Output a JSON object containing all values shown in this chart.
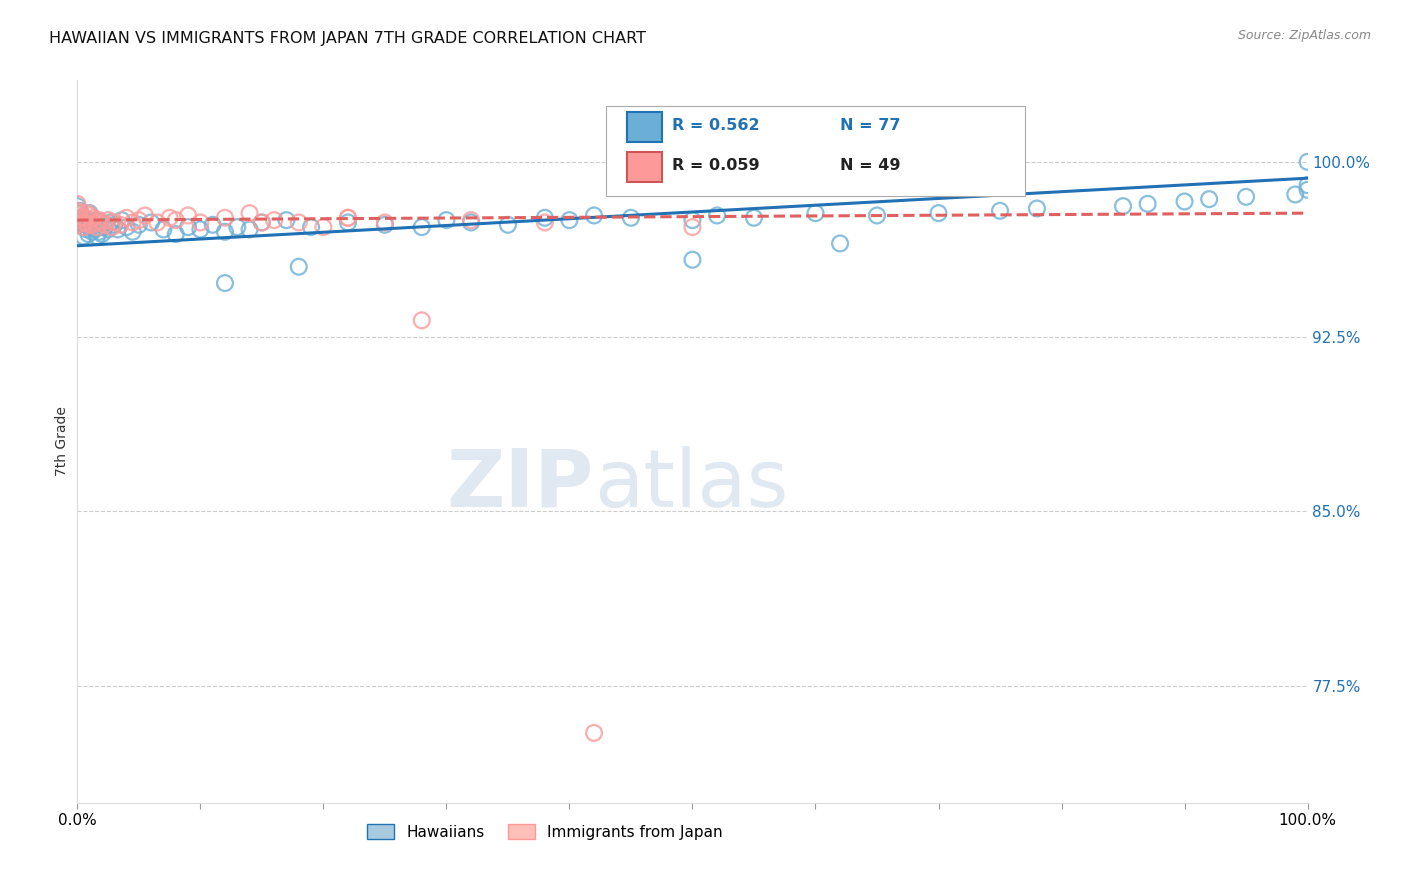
{
  "title": "HAWAIIAN VS IMMIGRANTS FROM JAPAN 7TH GRADE CORRELATION CHART",
  "source": "Source: ZipAtlas.com",
  "ylabel": "7th Grade",
  "xlim": [
    0.0,
    1.0
  ],
  "ylim": [
    0.725,
    1.035
  ],
  "yticks": [
    0.775,
    0.85,
    0.925,
    1.0
  ],
  "ytick_labels": [
    "77.5%",
    "85.0%",
    "92.5%",
    "100.0%"
  ],
  "hawaiians_color": "#6baed6",
  "japan_color": "#fb9a99",
  "trendline_hawaiians_color": "#2171b5",
  "trendline_japan_color": "#e06060",
  "R_hawaiians": 0.562,
  "N_hawaiians": 77,
  "R_japan": 0.059,
  "N_japan": 49,
  "background_color": "#ffffff",
  "h_x": [
    0.0,
    0.0,
    0.0,
    0.002,
    0.003,
    0.004,
    0.005,
    0.005,
    0.006,
    0.007,
    0.008,
    0.009,
    0.009,
    0.01,
    0.01,
    0.011,
    0.012,
    0.013,
    0.014,
    0.015,
    0.016,
    0.017,
    0.018,
    0.019,
    0.02,
    0.022,
    0.025,
    0.027,
    0.03,
    0.033,
    0.036,
    0.04,
    0.045,
    0.05,
    0.06,
    0.07,
    0.08,
    0.09,
    0.1,
    0.11,
    0.12,
    0.13,
    0.14,
    0.15,
    0.17,
    0.19,
    0.22,
    0.25,
    0.28,
    0.3,
    0.32,
    0.35,
    0.38,
    0.4,
    0.42,
    0.45,
    0.5,
    0.52,
    0.55,
    0.6,
    0.65,
    0.7,
    0.75,
    0.78,
    0.85,
    0.87,
    0.9,
    0.92,
    0.95,
    0.99,
    1.0,
    1.0,
    1.0,
    0.5,
    0.62,
    0.12,
    0.18
  ],
  "h_y": [
    0.981,
    0.978,
    0.975,
    0.979,
    0.976,
    0.974,
    0.972,
    0.968,
    0.976,
    0.973,
    0.971,
    0.975,
    0.969,
    0.978,
    0.972,
    0.974,
    0.97,
    0.973,
    0.971,
    0.975,
    0.968,
    0.972,
    0.97,
    0.974,
    0.969,
    0.972,
    0.971,
    0.974,
    0.973,
    0.971,
    0.975,
    0.972,
    0.97,
    0.973,
    0.974,
    0.971,
    0.969,
    0.972,
    0.971,
    0.973,
    0.97,
    0.972,
    0.971,
    0.974,
    0.975,
    0.972,
    0.974,
    0.973,
    0.972,
    0.975,
    0.974,
    0.973,
    0.976,
    0.975,
    0.977,
    0.976,
    0.975,
    0.977,
    0.976,
    0.978,
    0.977,
    0.978,
    0.979,
    0.98,
    0.981,
    0.982,
    0.983,
    0.984,
    0.985,
    0.986,
    0.988,
    0.99,
    1.0,
    0.958,
    0.965,
    0.948,
    0.955
  ],
  "j_x": [
    0.0,
    0.0,
    0.0,
    0.0,
    0.0,
    0.002,
    0.003,
    0.004,
    0.005,
    0.006,
    0.007,
    0.008,
    0.009,
    0.01,
    0.011,
    0.012,
    0.013,
    0.015,
    0.016,
    0.018,
    0.02,
    0.022,
    0.025,
    0.028,
    0.03,
    0.035,
    0.04,
    0.045,
    0.05,
    0.055,
    0.065,
    0.075,
    0.08,
    0.09,
    0.1,
    0.12,
    0.14,
    0.16,
    0.18,
    0.2,
    0.22,
    0.25,
    0.28,
    0.32,
    0.38,
    0.42,
    0.5,
    0.22,
    0.15
  ],
  "j_y": [
    0.982,
    0.979,
    0.977,
    0.975,
    0.973,
    0.978,
    0.976,
    0.974,
    0.972,
    0.976,
    0.974,
    0.978,
    0.973,
    0.977,
    0.975,
    0.973,
    0.976,
    0.974,
    0.972,
    0.975,
    0.974,
    0.973,
    0.975,
    0.972,
    0.974,
    0.973,
    0.976,
    0.974,
    0.975,
    0.977,
    0.974,
    0.976,
    0.975,
    0.977,
    0.974,
    0.976,
    0.978,
    0.975,
    0.974,
    0.972,
    0.976,
    0.974,
    0.932,
    0.975,
    0.974,
    0.755,
    0.972,
    0.976,
    0.974
  ]
}
